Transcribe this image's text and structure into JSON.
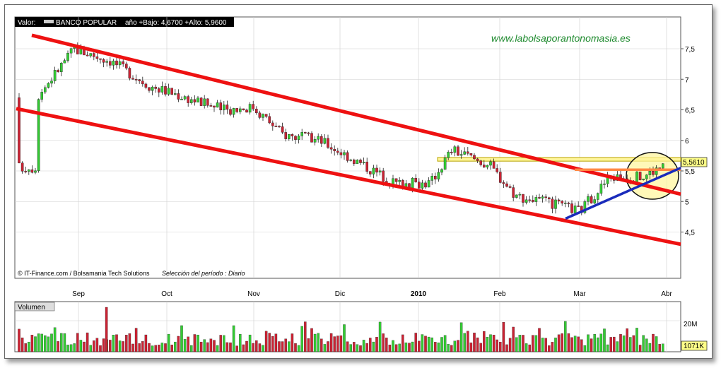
{
  "header": {
    "label": "Valor:",
    "ticker": "BANCO POPULAR",
    "stats": "año +Bajo: 4,6700 +Alto: 5,9600"
  },
  "watermark": "www.labolsaporantonomasia.es",
  "footer": {
    "source": "© IT-Finance.com / Bolsamania Tech Solutions",
    "period": "Selección del período : Diario"
  },
  "colors": {
    "up": "#33cc33",
    "down": "#cc2233",
    "channel": "#ee1111",
    "trendline": "#1a2bbb",
    "resistance_band": "#fff59a",
    "support_line": "#ff8844",
    "last_price_box": "#ffff88"
  },
  "chart_data": [
    {
      "type": "candlestick",
      "title": "BANCO POPULAR",
      "y_ticks": [
        "7,5",
        "7",
        "6,5",
        "6",
        "5,5",
        "5",
        "4,5"
      ],
      "ylim": [
        4.2,
        7.8
      ],
      "x_ticks": [
        "Sep",
        "Oct",
        "Nov",
        "Dic",
        "2010",
        "Feb",
        "Mar",
        "Abr"
      ],
      "last_price": "5,5610",
      "period_low": 4.67,
      "period_high": 5.96,
      "approx_close_path": [
        {
          "date": "2009-08-10",
          "close": 6.7
        },
        {
          "date": "2009-08-24",
          "close": 7.5
        },
        {
          "date": "2009-09-07",
          "close": 7.3
        },
        {
          "date": "2009-09-21",
          "close": 6.9
        },
        {
          "date": "2009-10-05",
          "close": 6.7
        },
        {
          "date": "2009-10-19",
          "close": 6.5
        },
        {
          "date": "2009-10-30",
          "close": 6.55
        },
        {
          "date": "2009-11-10",
          "close": 6.1
        },
        {
          "date": "2009-11-24",
          "close": 6.0
        },
        {
          "date": "2009-12-08",
          "close": 5.65
        },
        {
          "date": "2009-12-22",
          "close": 5.3
        },
        {
          "date": "2010-01-04",
          "close": 5.3
        },
        {
          "date": "2010-01-12",
          "close": 5.85
        },
        {
          "date": "2010-01-26",
          "close": 5.6
        },
        {
          "date": "2010-02-05",
          "close": 5.1
        },
        {
          "date": "2010-02-19",
          "close": 4.95
        },
        {
          "date": "2010-03-01",
          "close": 4.85
        },
        {
          "date": "2010-03-12",
          "close": 5.4
        },
        {
          "date": "2010-03-24",
          "close": 5.4
        },
        {
          "date": "2010-03-31",
          "close": 5.56
        }
      ],
      "overlays": [
        "descending channel (2 parallel red lines)",
        "blue rising trendline",
        "yellow resistance band near 5,6-5,7",
        "orange horizontal line near 5,5",
        "circle highlighting breakout"
      ]
    },
    {
      "type": "bar",
      "title": "Volumen",
      "y_ticks": [
        "20M"
      ],
      "last_value": "1071K"
    }
  ]
}
